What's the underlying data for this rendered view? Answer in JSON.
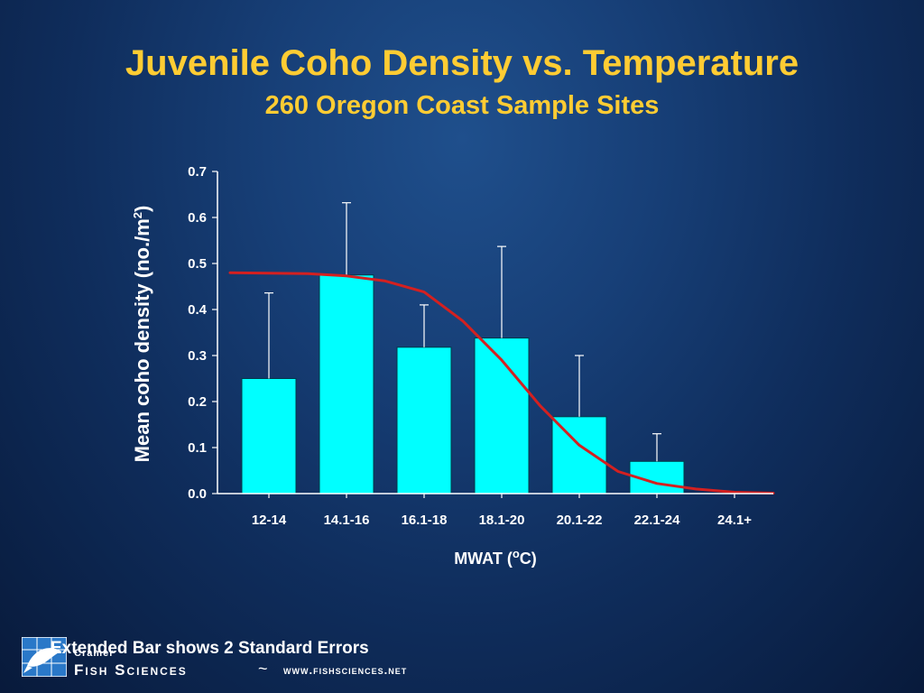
{
  "slide": {
    "title": "Juvenile Coho Density vs. Temperature",
    "subtitle": "260 Oregon Coast Sample Sites",
    "footer_note": "Extended Bar shows 2 Standard Errors",
    "logo_small": "Cramer",
    "brand": "Fish Sciences",
    "tilde": "~",
    "website": "www.fishsciences.net"
  },
  "chart_data": {
    "type": "bar",
    "title": "",
    "ylabel": "Mean coho density (no./m",
    "ylabel_sup": "2",
    "ylabel_close": ")",
    "xlabel": "MWAT (",
    "xlabel_sup": "o",
    "xlabel_close": "C)",
    "categories": [
      "12-14",
      "14.1-16",
      "16.1-18",
      "18.1-20",
      "20.1-22",
      "22.1-24",
      "24.1+"
    ],
    "values": [
      0.25,
      0.475,
      0.318,
      0.338,
      0.167,
      0.07,
      0.0
    ],
    "error_upper": [
      0.436,
      0.632,
      0.41,
      0.537,
      0.3,
      0.13,
      null
    ],
    "ylim": [
      0,
      0.7
    ],
    "yticks": [
      "0.0",
      "0.1",
      "0.2",
      "0.3",
      "0.4",
      "0.5",
      "0.6",
      "0.7"
    ],
    "trend_curve": {
      "x": [
        -0.5,
        0.0,
        0.5,
        1.0,
        1.5,
        2.0,
        2.5,
        3.0,
        3.5,
        4.0,
        4.5,
        5.0,
        5.5,
        6.0,
        6.5
      ],
      "y": [
        0.48,
        0.479,
        0.478,
        0.473,
        0.462,
        0.438,
        0.375,
        0.29,
        0.19,
        0.105,
        0.048,
        0.022,
        0.01,
        0.003,
        0.001
      ]
    },
    "colors": {
      "bar": "#00ffff",
      "trend": "#d42020",
      "axis": "#ffffff",
      "error": "#ffffff"
    },
    "grid": false,
    "legend": "none"
  }
}
